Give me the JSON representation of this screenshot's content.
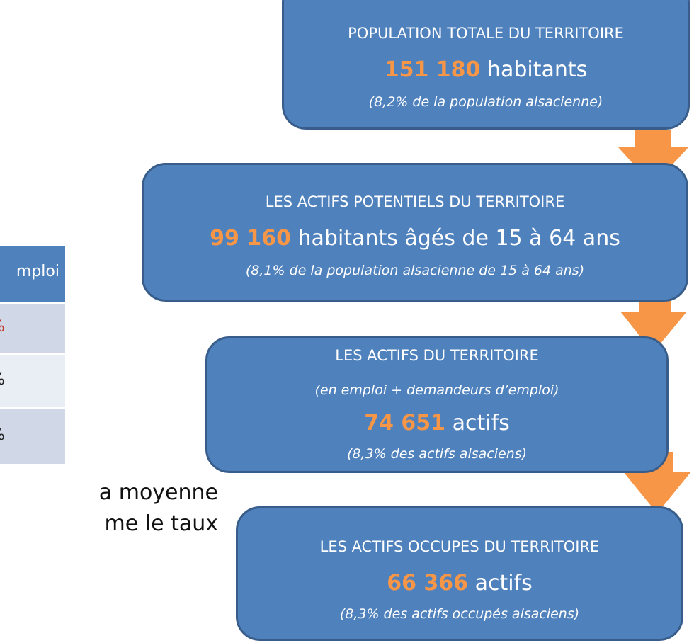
{
  "boxes": [
    {
      "title": "POPULATION TOTALE DU TERRITOIRE",
      "number": "151 180",
      "unit": "habitants",
      "note": "(8,2% de la population alsacienne)"
    },
    {
      "title": "LES ACTIFS POTENTIELS DU TERRITOIRE",
      "number": "99 160",
      "unit": "habitants âgés de 15 à 64 ans",
      "note": "(8,1% de la population alsacienne de 15 à 64 ans)"
    },
    {
      "title": "LES ACTIFS DU TERRITOIRE",
      "subtitle": "(en emploi + demandeurs d’emploi)",
      "number": "74 651",
      "unit": "actifs",
      "note": "(8,3% des actifs alsaciens)"
    },
    {
      "title": "LES ACTIFS OCCUPES DU TERRITOIRE",
      "number": "66 366",
      "unit": "actifs",
      "note": "(8,3% des actifs occupés alsaciens)"
    }
  ],
  "table": {
    "header": "mploi",
    "rows": [
      "%",
      "%",
      "%"
    ]
  },
  "paragraph": [
    "a moyenne",
    "me le taux"
  ]
}
